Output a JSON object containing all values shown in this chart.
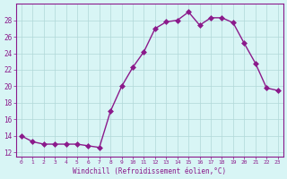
{
  "x": [
    0,
    1,
    2,
    3,
    4,
    5,
    6,
    7,
    8,
    9,
    10,
    11,
    12,
    13,
    14,
    15,
    16,
    17,
    18,
    19,
    20,
    21,
    22,
    23
  ],
  "y": [
    14.0,
    13.3,
    13.0,
    13.0,
    13.0,
    13.0,
    12.8,
    12.6,
    17.0,
    20.0,
    22.3,
    24.2,
    27.0,
    27.8,
    28.0,
    29.0,
    27.4,
    28.3,
    28.3,
    27.7,
    25.2,
    22.8,
    19.8,
    19.5
  ],
  "line_color": "#8B1A8B",
  "marker": "D",
  "marker_size": 3,
  "bg_color": "#D8F5F5",
  "grid_color": "#B0D8D8",
  "xlabel": "Windchill (Refroidissement éolien,°C)",
  "ylabel": "",
  "title": "",
  "xlim": [
    -0.5,
    23.5
  ],
  "ylim": [
    11.5,
    30.0
  ],
  "yticks": [
    12,
    14,
    16,
    18,
    20,
    22,
    24,
    26,
    28
  ],
  "xticks": [
    0,
    1,
    2,
    3,
    4,
    5,
    6,
    7,
    8,
    9,
    10,
    11,
    12,
    13,
    14,
    15,
    16,
    17,
    18,
    19,
    20,
    21,
    22,
    23
  ],
  "label_color": "#8B1A8B",
  "tick_color": "#8B1A8B",
  "spine_color": "#8B1A8B"
}
